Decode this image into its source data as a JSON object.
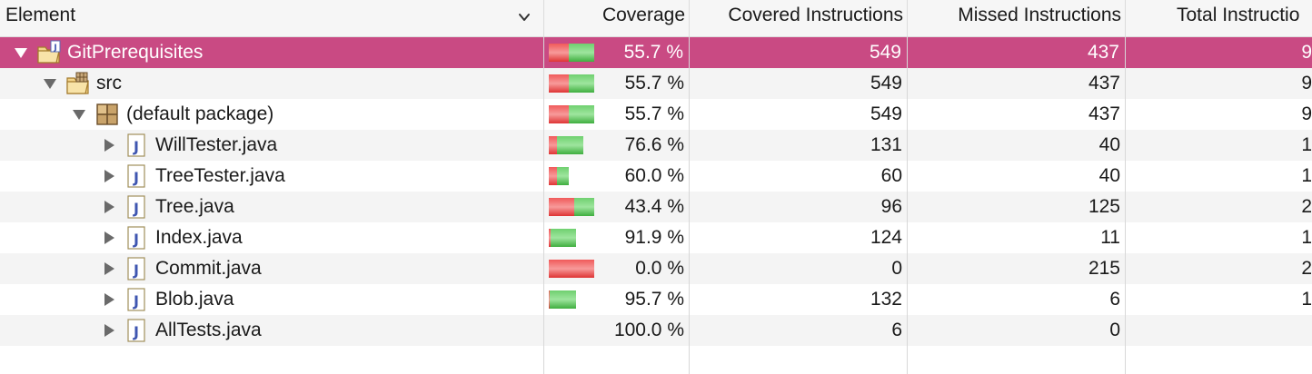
{
  "header": {
    "element": "Element",
    "coverage": "Coverage",
    "covered_instructions": "Covered Instructions",
    "missed_instructions": "Missed Instructions",
    "total_instructions": "Total Instructio"
  },
  "colors": {
    "selection": "#c94a83",
    "bar_covered": "#4fbf4f",
    "bar_missed": "#ee4a4a"
  },
  "rows": [
    {
      "name": "GitPrerequisites",
      "icon": "java-project-icon",
      "expanded": true,
      "coverage_pct": 55.7,
      "coverage": "55.7 %",
      "covered": "549",
      "missed": "437",
      "total": "9",
      "selected": true
    },
    {
      "name": "src",
      "icon": "source-folder-icon",
      "expanded": true,
      "coverage_pct": 55.7,
      "coverage": "55.7 %",
      "covered": "549",
      "missed": "437",
      "total": "9"
    },
    {
      "name": "(default package)",
      "icon": "package-icon",
      "expanded": true,
      "coverage_pct": 55.7,
      "coverage": "55.7 %",
      "covered": "549",
      "missed": "437",
      "total": "9"
    },
    {
      "name": "WillTester.java",
      "icon": "java-file-icon",
      "expanded": false,
      "coverage_pct": 76.6,
      "coverage": "76.6 %",
      "covered": "131",
      "missed": "40",
      "total": "1"
    },
    {
      "name": "TreeTester.java",
      "icon": "java-file-icon",
      "expanded": false,
      "coverage_pct": 60.0,
      "coverage": "60.0 %",
      "covered": "60",
      "missed": "40",
      "total": "1"
    },
    {
      "name": "Tree.java",
      "icon": "java-file-icon",
      "expanded": false,
      "coverage_pct": 43.4,
      "coverage": "43.4 %",
      "covered": "96",
      "missed": "125",
      "total": "2"
    },
    {
      "name": "Index.java",
      "icon": "java-file-icon",
      "expanded": false,
      "coverage_pct": 91.9,
      "coverage": "91.9 %",
      "covered": "124",
      "missed": "11",
      "total": "1"
    },
    {
      "name": "Commit.java",
      "icon": "java-file-icon",
      "expanded": false,
      "coverage_pct": 0.0,
      "coverage": "0.0 %",
      "covered": "0",
      "missed": "215",
      "total": "2"
    },
    {
      "name": "Blob.java",
      "icon": "java-file-icon",
      "expanded": false,
      "coverage_pct": 95.7,
      "coverage": "95.7 %",
      "covered": "132",
      "missed": "6",
      "total": "1"
    },
    {
      "name": "AllTests.java",
      "icon": "java-file-icon",
      "expanded": false,
      "coverage_pct": 100.0,
      "coverage": "100.0 %",
      "covered": "6",
      "missed": "0",
      "total": ""
    }
  ]
}
